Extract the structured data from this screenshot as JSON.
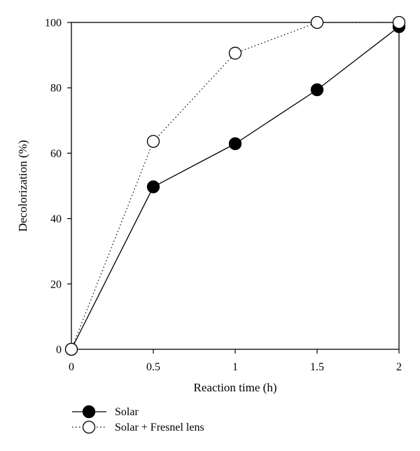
{
  "chart_data": {
    "type": "line",
    "title": "",
    "xlabel": "Reaction time (h)",
    "ylabel": "Decolorization (%)",
    "xlim": [
      0,
      2
    ],
    "ylim": [
      0,
      100
    ],
    "x_ticks": [
      0,
      0.5,
      1,
      1.5,
      2
    ],
    "x_tick_labels": [
      "0",
      "0.5",
      "1",
      "1.5",
      "2"
    ],
    "y_ticks": [
      0,
      20,
      40,
      60,
      80,
      100
    ],
    "y_tick_labels": [
      "0",
      "20",
      "40",
      "60",
      "80",
      "100"
    ],
    "grid": false,
    "legend_position": "bottom-left",
    "series": [
      {
        "name": "Solar",
        "x": [
          0,
          0.5,
          1,
          1.5,
          2
        ],
        "values": [
          0,
          49.7,
          62.9,
          79.4,
          98.7
        ],
        "marker": "filled-circle",
        "line_style": "solid",
        "color": "#000000"
      },
      {
        "name": "Solar + Fresnel lens",
        "x": [
          0,
          0.5,
          1,
          1.5,
          2
        ],
        "values": [
          0,
          63.6,
          90.6,
          100,
          100
        ],
        "marker": "open-circle",
        "line_style": "dotted",
        "color": "#000000"
      }
    ]
  }
}
